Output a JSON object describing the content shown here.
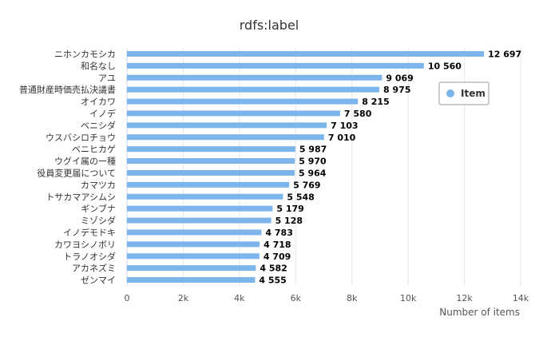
{
  "chart_data": {
    "type": "bar",
    "orientation": "horizontal",
    "title": "rdfs:label",
    "xlabel": "Number of items",
    "ylabel": "",
    "xlim": [
      0,
      14000
    ],
    "x_ticks": [
      "0",
      "2k",
      "4k",
      "6k",
      "8k",
      "10k",
      "12k",
      "14k"
    ],
    "x_tick_values": [
      0,
      2000,
      4000,
      6000,
      8000,
      10000,
      12000,
      14000
    ],
    "grid": true,
    "legend_position": "right",
    "categories": [
      "ニホンカモシカ",
      "和名なし",
      "アユ",
      "普通財産時価売払決議書",
      "オイカワ",
      "イノデ",
      "ベニシダ",
      "ウスバシロチョウ",
      "ベニヒカゲ",
      "ウグイ属の一種",
      "役員変更届について",
      "カマツカ",
      "トサカマアシムシ",
      "ギンブナ",
      "ミゾシダ",
      "イノデモドキ",
      "カワヨシノボリ",
      "トラノオシダ",
      "アカネズミ",
      "ゼンマイ"
    ],
    "series": [
      {
        "name": "Item",
        "color": "#7cb5ec",
        "values": [
          12697,
          10560,
          9069,
          8975,
          8215,
          7580,
          7103,
          7010,
          5987,
          5970,
          5964,
          5769,
          5548,
          5179,
          5128,
          4783,
          4718,
          4709,
          4582,
          4555
        ],
        "value_labels": [
          "12 697",
          "10 560",
          "9 069",
          "8 975",
          "8 215",
          "7 580",
          "7 103",
          "7 010",
          "5 987",
          "5 970",
          "5 964",
          "5 769",
          "5 548",
          "5 179",
          "5 128",
          "4 783",
          "4 718",
          "4 709",
          "4 582",
          "4 555"
        ]
      }
    ]
  }
}
